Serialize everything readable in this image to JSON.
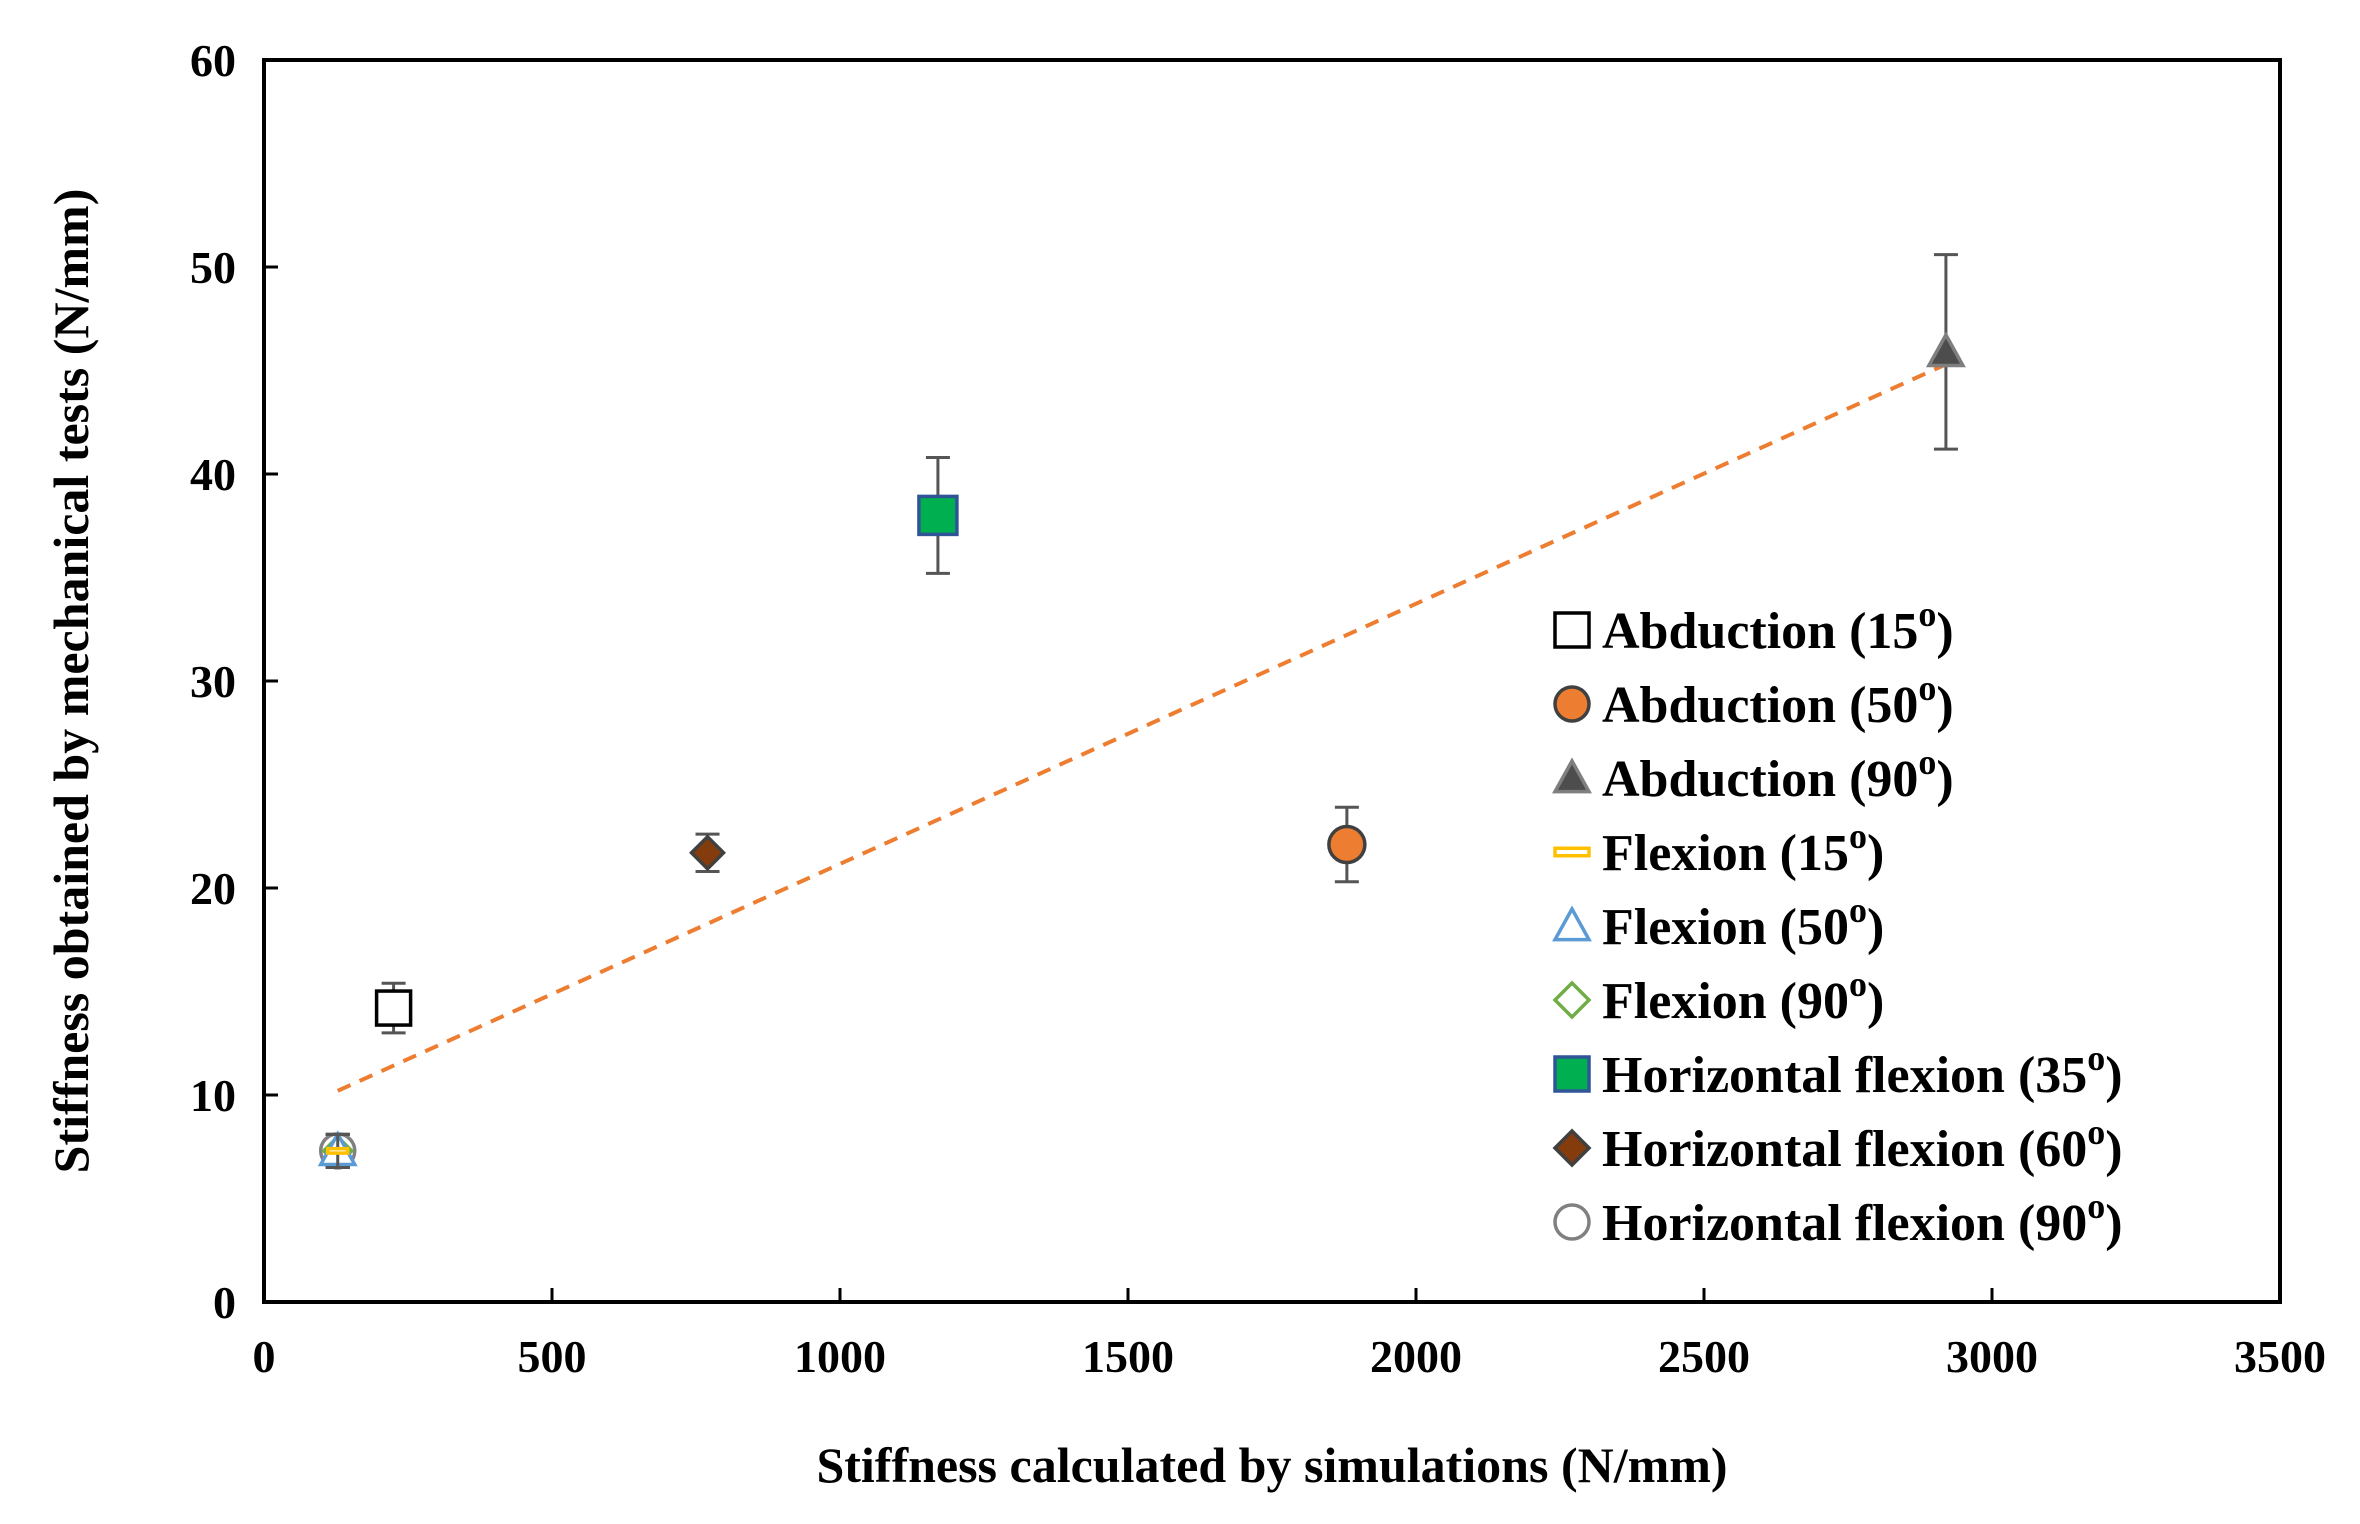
{
  "chart_data": {
    "type": "scatter",
    "title": "",
    "xlabel": "Stiffness calculated by simulations (N/mm)",
    "ylabel": "Stiffness obtained by mechanical tests (N/mm)",
    "xlim": [
      0,
      3500
    ],
    "ylim": [
      0,
      60
    ],
    "xticks": [
      0,
      500,
      1000,
      1500,
      2000,
      2500,
      3000,
      3500
    ],
    "yticks": [
      0,
      10,
      20,
      30,
      40,
      50,
      60
    ],
    "xtick_labels": [
      "0",
      "500",
      "1000",
      "1500",
      "2000",
      "2500",
      "3000",
      "3500"
    ],
    "ytick_labels": [
      "0",
      "10",
      "20",
      "30",
      "40",
      "50",
      "60"
    ],
    "grid": false,
    "legend_position": "right",
    "series": [
      {
        "name": "Abduction (15",
        "marker": "square-open",
        "color": "#000000",
        "fill": "#ffffff",
        "x": 225,
        "y": 14.2,
        "err": 1.2
      },
      {
        "name": "Abduction (50",
        "marker": "circle",
        "color": "#404040",
        "fill": "#ed7d31",
        "x": 1880,
        "y": 22.1,
        "err": 1.8
      },
      {
        "name": "Abduction (90",
        "marker": "triangle",
        "color": "#7f7f7f",
        "fill": "#4d4d4d",
        "x": 2920,
        "y": 45.9,
        "err": 4.7
      },
      {
        "name": "Flexion (15",
        "marker": "dash",
        "color": "#ffc000",
        "fill": "#ffffff",
        "x": 128,
        "y": 7.3,
        "err": 0.8
      },
      {
        "name": "Flexion (50",
        "marker": "triangle-open",
        "color": "#5b9bd5",
        "fill": "#ffffff",
        "x": 128,
        "y": 7.3,
        "err": 0.8
      },
      {
        "name": "Flexion (90",
        "marker": "diamond-open",
        "color": "#70ad47",
        "fill": "#ffffff",
        "x": 128,
        "y": 7.3,
        "err": 0.8
      },
      {
        "name": "Horizontal flexion (35",
        "marker": "square",
        "color": "#2f5597",
        "fill": "#00b050",
        "x": 1170,
        "y": 38.0,
        "err": 2.8
      },
      {
        "name": "Horizontal flexion (60",
        "marker": "diamond",
        "color": "#404040",
        "fill": "#843c0c",
        "x": 770,
        "y": 21.7,
        "err": 0.9
      },
      {
        "name": "Horizontal flexion (90",
        "marker": "circle-open",
        "color": "#808080",
        "fill": "#ffffff",
        "x": 128,
        "y": 7.3,
        "err": 0.8
      }
    ],
    "legend_suffix": "o",
    "legend_close": ")",
    "trendline": {
      "style": "dashed",
      "color": "#ed7d31",
      "x": [
        128,
        2920
      ],
      "y": [
        10.2,
        45.3
      ]
    }
  }
}
